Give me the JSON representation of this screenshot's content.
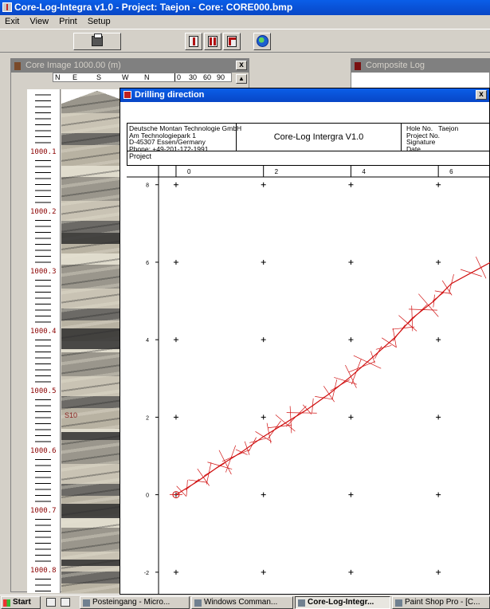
{
  "app": {
    "title": "Core-Log-Integra v1.0 - Project: Taejon - Core: CORE000.bmp"
  },
  "menu": [
    "Exit",
    "View",
    "Print",
    "Setup"
  ],
  "toolbar": {
    "icons": [
      "printer-icon",
      "log-bars-icon",
      "log-split-icon",
      "drill-icon",
      "globe-icon"
    ]
  },
  "core_window": {
    "title": "Core Image 1000.00 (m)",
    "close_label": "x",
    "compass_labels": [
      "N",
      "E",
      "S",
      "W",
      "N",
      "0",
      "30",
      "60",
      "90"
    ],
    "depth_labels": [
      "1000.1",
      "1000.2",
      "1000.3",
      "1000.4",
      "1000.5",
      "1000.6",
      "1000.7",
      "1000.8"
    ],
    "image_labels": [
      "S10"
    ]
  },
  "composite_window": {
    "title": "Composite Log"
  },
  "drill_window": {
    "title": "Drilling direction",
    "close_label": "x",
    "company_lines": [
      "Deutsche Montan Technologie GmbH",
      "Am Technologiepark 1",
      "D-45307 Essen/Germany",
      "Phone: +49-201-172-1991"
    ],
    "software": "Core-Log Intergra V1.0",
    "hole_label": "Hole No.",
    "hole_value": "Taejon",
    "meta_labels": [
      "Project No.",
      "Signature",
      "Date"
    ],
    "project_label": "Project"
  },
  "chart_data": {
    "type": "scatter",
    "x_ticks": [
      0,
      2,
      4,
      6
    ],
    "y_ticks": [
      8,
      6,
      4,
      2,
      0,
      -2
    ],
    "xlim": [
      -0.4,
      7.2
    ],
    "ylim": [
      -2.6,
      8.2
    ],
    "grid_markers": "plus",
    "trace_color": "#d01010",
    "trace": [
      {
        "x": 0.0,
        "y": 0.0
      },
      {
        "x": 0.5,
        "y": 0.35
      },
      {
        "x": 1.0,
        "y": 0.75
      },
      {
        "x": 1.5,
        "y": 1.1
      },
      {
        "x": 2.0,
        "y": 1.5
      },
      {
        "x": 2.5,
        "y": 1.85
      },
      {
        "x": 3.0,
        "y": 2.2
      },
      {
        "x": 3.5,
        "y": 2.6
      },
      {
        "x": 4.0,
        "y": 3.05
      },
      {
        "x": 4.5,
        "y": 3.55
      },
      {
        "x": 5.0,
        "y": 4.05
      },
      {
        "x": 5.4,
        "y": 4.55
      },
      {
        "x": 5.9,
        "y": 5.0
      },
      {
        "x": 6.3,
        "y": 5.45
      },
      {
        "x": 7.2,
        "y": 6.0
      }
    ]
  },
  "taskbar": {
    "start": "Start",
    "tasks": [
      "Posteingang - Micro...",
      "Windows Comman...",
      "Core-Log-Integr...",
      "Paint Shop Pro - [C..."
    ]
  }
}
